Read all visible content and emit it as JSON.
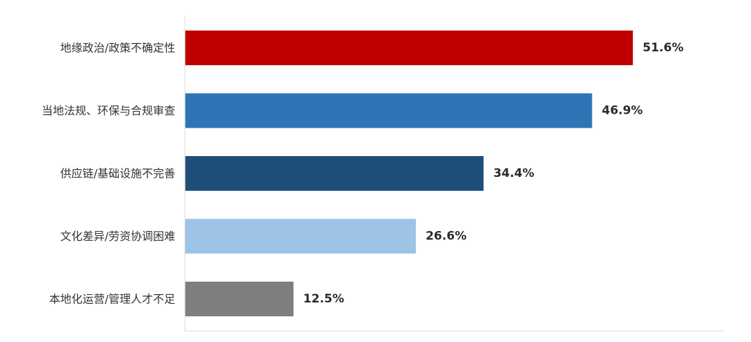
{
  "chart_data": {
    "type": "bar",
    "orientation": "horizontal",
    "categories": [
      "地缘政治/政策不确定性",
      "当地法规、环保与合规审查",
      "供应链/基础设施不完善",
      "文化差异/劳资协调困难",
      "本地化运营/管理人才不足"
    ],
    "values": [
      51.6,
      46.9,
      34.4,
      26.6,
      12.5
    ],
    "value_labels": [
      "51.6%",
      "46.9%",
      "34.4%",
      "26.6%",
      "12.5%"
    ],
    "colors": [
      "#c00000",
      "#2e75b6",
      "#1f4e79",
      "#9dc3e6",
      "#7f7f7f"
    ],
    "xlim": [
      0,
      62
    ],
    "grid": false,
    "legend": "none",
    "title": "",
    "xlabel": "",
    "ylabel": ""
  }
}
